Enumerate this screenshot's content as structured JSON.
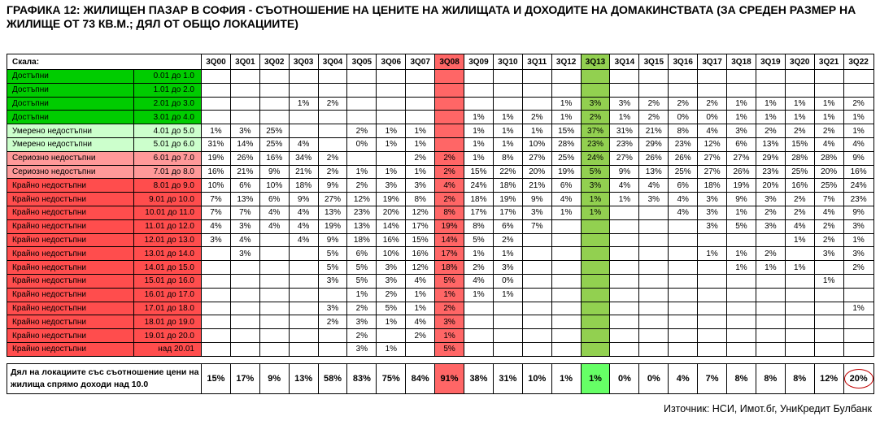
{
  "title": "ГРАФИКА 12: ЖИЛИЩЕН ПАЗАР В СОФИЯ - СЪОТНОШЕНИЕ НА ЦЕНИТЕ НА ЖИЛИЩАТА И ДОХОДИТЕ НА ДОМАКИНСТВАТА (ЗА СРЕДЕН РАЗМЕР НА ЖИЛИЩЕ ОТ 73 КВ.М.; ДЯЛ ОТ ОБЩО ЛОКАЦИИТЕ)",
  "source": "Източник: НСИ, Имот.бг, УниКредит Булбанк",
  "colors": {
    "green": "#00cc00",
    "light_green": "#ccffcc",
    "pink": "#ff9999",
    "red": "#ff4d4d",
    "highlight_red": "#ff6666",
    "highlight_green": "#92d050",
    "total_green": "#66ff66",
    "circle": "#c00000"
  },
  "chart_data": {
    "type": "table",
    "scale_header": "Скала:",
    "columns": [
      "3Q00",
      "3Q01",
      "3Q02",
      "3Q03",
      "3Q04",
      "3Q05",
      "3Q06",
      "3Q07",
      "3Q08",
      "3Q09",
      "3Q10",
      "3Q11",
      "3Q12",
      "3Q13",
      "3Q14",
      "3Q15",
      "3Q16",
      "3Q17",
      "3Q18",
      "3Q19",
      "3Q20",
      "3Q21",
      "3Q22"
    ],
    "rows": [
      {
        "category": "Достъпни",
        "range": "0.01 до 1.0",
        "level": "green",
        "values": [
          "",
          "",
          "",
          "",
          "",
          "",
          "",
          "",
          "",
          "",
          "",
          "",
          "",
          "",
          "",
          "",
          "",
          "",
          "",
          "",
          "",
          "",
          ""
        ]
      },
      {
        "category": "Достъпни",
        "range": "1.01 до 2.0",
        "level": "green",
        "values": [
          "",
          "",
          "",
          "",
          "",
          "",
          "",
          "",
          "",
          "",
          "",
          "",
          "",
          "",
          "",
          "",
          "",
          "",
          "",
          "",
          "",
          "",
          ""
        ]
      },
      {
        "category": "Достъпни",
        "range": "2.01 до 3.0",
        "level": "green",
        "values": [
          "",
          "",
          "",
          "1%",
          "2%",
          "",
          "",
          "",
          "",
          "",
          "",
          "",
          "1%",
          "3%",
          "3%",
          "2%",
          "2%",
          "2%",
          "1%",
          "1%",
          "1%",
          "1%",
          "2%"
        ]
      },
      {
        "category": "Достъпни",
        "range": "3.01 до 4.0",
        "level": "green",
        "values": [
          "",
          "",
          "",
          "",
          "",
          "",
          "",
          "",
          "",
          "1%",
          "1%",
          "2%",
          "1%",
          "2%",
          "1%",
          "2%",
          "0%",
          "0%",
          "1%",
          "1%",
          "1%",
          "1%",
          "1%"
        ]
      },
      {
        "category": "Умерено недостъпни",
        "range": "4.01 до 5.0",
        "level": "light_green",
        "values": [
          "1%",
          "3%",
          "25%",
          "",
          "",
          "2%",
          "1%",
          "1%",
          "",
          "1%",
          "1%",
          "1%",
          "15%",
          "37%",
          "31%",
          "21%",
          "8%",
          "4%",
          "3%",
          "2%",
          "2%",
          "2%",
          "1%"
        ]
      },
      {
        "category": "Умерено недостъпни",
        "range": "5.01 до 6.0",
        "level": "light_green",
        "values": [
          "31%",
          "14%",
          "25%",
          "4%",
          "",
          "0%",
          "1%",
          "1%",
          "",
          "1%",
          "1%",
          "10%",
          "28%",
          "23%",
          "23%",
          "29%",
          "23%",
          "12%",
          "6%",
          "13%",
          "15%",
          "4%",
          "4%"
        ]
      },
      {
        "category": "Сериозно недостъпни",
        "range": "6.01 до 7.0",
        "level": "pink",
        "values": [
          "19%",
          "26%",
          "16%",
          "34%",
          "2%",
          "",
          "",
          "2%",
          "2%",
          "1%",
          "8%",
          "27%",
          "25%",
          "24%",
          "27%",
          "26%",
          "26%",
          "27%",
          "27%",
          "29%",
          "28%",
          "28%",
          "9%"
        ]
      },
      {
        "category": "Сериозно недостъпни",
        "range": "7.01 до 8.0",
        "level": "pink",
        "values": [
          "16%",
          "21%",
          "9%",
          "21%",
          "2%",
          "1%",
          "1%",
          "1%",
          "2%",
          "15%",
          "22%",
          "20%",
          "19%",
          "5%",
          "9%",
          "13%",
          "25%",
          "27%",
          "26%",
          "23%",
          "25%",
          "20%",
          "16%"
        ]
      },
      {
        "category": "Крайно недостъпни",
        "range": "8.01 до 9.0",
        "level": "red",
        "values": [
          "10%",
          "6%",
          "10%",
          "18%",
          "9%",
          "2%",
          "3%",
          "3%",
          "4%",
          "24%",
          "18%",
          "21%",
          "6%",
          "3%",
          "4%",
          "4%",
          "6%",
          "18%",
          "19%",
          "20%",
          "16%",
          "25%",
          "24%"
        ]
      },
      {
        "category": "Крайно недостъпни",
        "range": "9.01 до 10.0",
        "level": "red",
        "values": [
          "7%",
          "13%",
          "6%",
          "9%",
          "27%",
          "12%",
          "19%",
          "8%",
          "2%",
          "18%",
          "19%",
          "9%",
          "4%",
          "1%",
          "1%",
          "3%",
          "4%",
          "3%",
          "9%",
          "3%",
          "2%",
          "7%",
          "23%"
        ]
      },
      {
        "category": "Крайно недостъпни",
        "range": "10.01 до 11.0",
        "level": "red",
        "values": [
          "7%",
          "7%",
          "4%",
          "4%",
          "13%",
          "23%",
          "20%",
          "12%",
          "8%",
          "17%",
          "17%",
          "3%",
          "1%",
          "1%",
          "",
          "",
          "4%",
          "3%",
          "1%",
          "2%",
          "2%",
          "4%",
          "9%"
        ]
      },
      {
        "category": "Крайно недостъпни",
        "range": "11.01 до 12.0",
        "level": "red",
        "values": [
          "4%",
          "3%",
          "4%",
          "4%",
          "19%",
          "13%",
          "14%",
          "17%",
          "19%",
          "8%",
          "6%",
          "7%",
          "",
          "",
          "",
          "",
          "",
          "3%",
          "5%",
          "3%",
          "4%",
          "2%",
          "3%"
        ]
      },
      {
        "category": "Крайно недостъпни",
        "range": "12.01 до 13.0",
        "level": "red",
        "values": [
          "3%",
          "4%",
          "",
          "4%",
          "9%",
          "18%",
          "16%",
          "15%",
          "14%",
          "5%",
          "2%",
          "",
          "",
          "",
          "",
          "",
          "",
          "",
          "",
          "",
          "1%",
          "2%",
          "1%"
        ]
      },
      {
        "category": "Крайно недостъпни",
        "range": "13.01 до 14.0",
        "level": "red",
        "values": [
          "",
          "3%",
          "",
          "",
          "5%",
          "6%",
          "10%",
          "16%",
          "17%",
          "1%",
          "1%",
          "",
          "",
          "",
          "",
          "",
          "",
          "1%",
          "1%",
          "2%",
          "",
          "3%",
          "3%"
        ]
      },
      {
        "category": "Крайно недостъпни",
        "range": "14.01 до 15.0",
        "level": "red",
        "values": [
          "",
          "",
          "",
          "",
          "5%",
          "5%",
          "3%",
          "12%",
          "18%",
          "2%",
          "3%",
          "",
          "",
          "",
          "",
          "",
          "",
          "",
          "1%",
          "1%",
          "1%",
          "",
          "2%"
        ]
      },
      {
        "category": "Крайно недостъпни",
        "range": "15.01 до 16.0",
        "level": "red",
        "values": [
          "",
          "",
          "",
          "",
          "3%",
          "5%",
          "3%",
          "4%",
          "5%",
          "4%",
          "0%",
          "",
          "",
          "",
          "",
          "",
          "",
          "",
          "",
          "",
          "",
          "1%",
          ""
        ]
      },
      {
        "category": "Крайно недостъпни",
        "range": "16.01 до 17.0",
        "level": "red",
        "values": [
          "",
          "",
          "",
          "",
          "",
          "1%",
          "2%",
          "1%",
          "1%",
          "1%",
          "1%",
          "",
          "",
          "",
          "",
          "",
          "",
          "",
          "",
          "",
          "",
          "",
          ""
        ]
      },
      {
        "category": "Крайно недостъпни",
        "range": "17.01 до 18.0",
        "level": "red",
        "values": [
          "",
          "",
          "",
          "",
          "3%",
          "2%",
          "5%",
          "1%",
          "2%",
          "",
          "",
          "",
          "",
          "",
          "",
          "",
          "",
          "",
          "",
          "",
          "",
          "",
          "1%"
        ]
      },
      {
        "category": "Крайно недостъпни",
        "range": "18.01 до 19.0",
        "level": "red",
        "values": [
          "",
          "",
          "",
          "",
          "2%",
          "3%",
          "1%",
          "4%",
          "3%",
          "",
          "",
          "",
          "",
          "",
          "",
          "",
          "",
          "",
          "",
          "",
          "",
          "",
          ""
        ]
      },
      {
        "category": "Крайно недостъпни",
        "range": "19.01 до 20.0",
        "level": "red",
        "values": [
          "",
          "",
          "",
          "",
          "",
          "2%",
          "",
          "2%",
          "1%",
          "",
          "",
          "",
          "",
          "",
          "",
          "",
          "",
          "",
          "",
          "",
          "",
          "",
          ""
        ]
      },
      {
        "category": "Крайно недостъпни",
        "range": "над 20.01",
        "level": "red",
        "values": [
          "",
          "",
          "",
          "",
          "",
          "3%",
          "1%",
          "",
          "5%",
          "",
          "",
          "",
          "",
          "",
          "",
          "",
          "",
          "",
          "",
          "",
          "",
          "",
          ""
        ]
      }
    ],
    "total": {
      "label": "Дял на локациите със съотношение цени на жилища спрямо доходи над 10.0",
      "values": [
        "15%",
        "17%",
        "9%",
        "13%",
        "58%",
        "83%",
        "75%",
        "84%",
        "91%",
        "38%",
        "31%",
        "10%",
        "1%",
        "1%",
        "0%",
        "0%",
        "4%",
        "7%",
        "8%",
        "8%",
        "8%",
        "12%",
        "20%"
      ],
      "circled_column": "3Q22"
    },
    "highlight_columns": {
      "max": "3Q08",
      "min": "3Q13"
    }
  }
}
